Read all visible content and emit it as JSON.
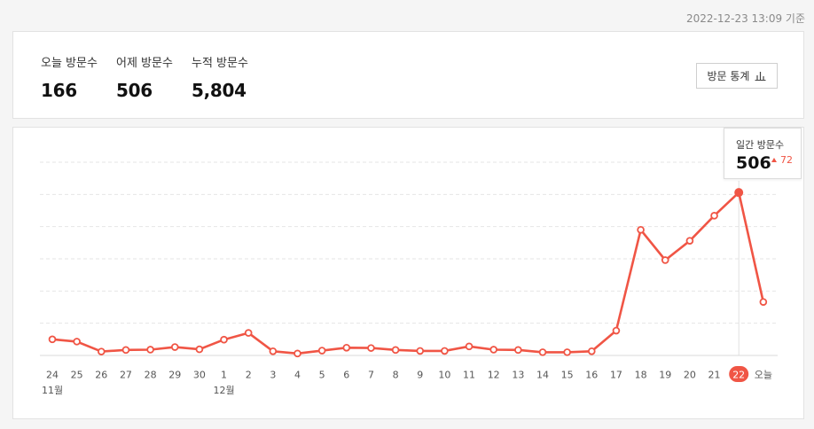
{
  "header": {
    "timestamp": "2022-12-23 13:09 기준"
  },
  "stats": {
    "today_label": "오늘 방문수",
    "today_value": "166",
    "yesterday_label": "어제 방문수",
    "yesterday_value": "506",
    "total_label": "누적 방문수",
    "total_value": "5,804",
    "stats_button_label": "방문 통계",
    "stats_button_icon": "bar-chart-icon"
  },
  "tooltip": {
    "title": "일간 방문수",
    "value": "506",
    "diff": "72",
    "diff_icon": "triangle-up-icon"
  },
  "colors": {
    "line": "#f05545",
    "highlight_badge": "#f05545",
    "grid": "#e6e6e6"
  },
  "chart_data": {
    "type": "line",
    "categories": [
      "24",
      "25",
      "26",
      "27",
      "28",
      "29",
      "30",
      "1",
      "2",
      "3",
      "4",
      "5",
      "6",
      "7",
      "8",
      "9",
      "10",
      "11",
      "12",
      "13",
      "14",
      "15",
      "16",
      "17",
      "18",
      "19",
      "20",
      "21",
      "22",
      "오늘"
    ],
    "month_labels": [
      {
        "index": 0,
        "label": "11월"
      },
      {
        "index": 7,
        "label": "12월"
      }
    ],
    "series": [
      {
        "values": [
          50,
          43,
          12,
          17,
          18,
          26,
          19,
          49,
          70,
          13,
          6,
          15,
          24,
          23,
          17,
          14,
          14,
          28,
          18,
          17,
          10,
          10,
          13,
          77,
          390,
          296,
          356,
          434,
          506,
          166
        ]
      }
    ],
    "highlight_index": 28,
    "ylim": [
      0,
      600
    ],
    "grid": true
  }
}
